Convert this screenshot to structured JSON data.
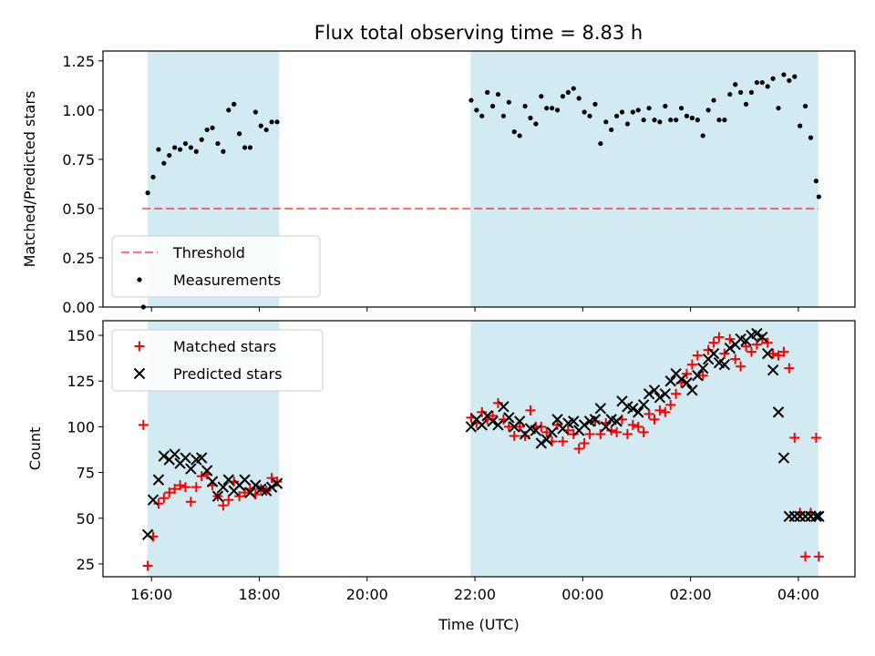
{
  "figure": {
    "title": "Flux total observing time = 8.83 h"
  },
  "colors": {
    "shade": "#add8e6",
    "threshold": "#ff0000",
    "measurements": "#000000",
    "matched": "#ff0000",
    "predicted": "#000000"
  },
  "chart_data": [
    {
      "type": "scatter",
      "title": "Flux total observing time = 8.83 h",
      "xlabel": "",
      "ylabel": "Matched/Predicted stars",
      "x_unit": "hours (UTC, continuous past midnight)",
      "xlim": [
        15.1,
        29.05
      ],
      "ylim": [
        0,
        1.3
      ],
      "yticks": [
        0.0,
        0.25,
        0.5,
        0.75,
        1.0,
        1.25
      ],
      "ytick_labels": [
        "0.00",
        "0.25",
        "0.50",
        "0.75",
        "1.00",
        "1.25"
      ],
      "shaded_regions": [
        [
          15.93,
          18.37
        ],
        [
          21.92,
          28.37
        ]
      ],
      "threshold": {
        "name": "Threshold",
        "y": 0.5,
        "x_range": [
          15.83,
          28.37
        ]
      },
      "legend": {
        "placement": "lower-left",
        "entries": [
          "Threshold",
          "Measurements"
        ]
      },
      "series": [
        {
          "name": "Measurements",
          "x": [
            15.85,
            15.93,
            16.03,
            16.13,
            16.23,
            16.33,
            16.43,
            16.53,
            16.63,
            16.73,
            16.83,
            16.93,
            17.03,
            17.13,
            17.23,
            17.33,
            17.43,
            17.53,
            17.63,
            17.73,
            17.83,
            17.93,
            18.03,
            18.13,
            18.23,
            18.33,
            21.93,
            22.03,
            22.13,
            22.23,
            22.33,
            22.43,
            22.53,
            22.63,
            22.73,
            22.83,
            22.93,
            23.03,
            23.13,
            23.23,
            23.33,
            23.43,
            23.53,
            23.63,
            23.73,
            23.83,
            23.93,
            24.03,
            24.13,
            24.23,
            24.33,
            24.43,
            24.53,
            24.63,
            24.73,
            24.83,
            24.93,
            25.03,
            25.13,
            25.23,
            25.33,
            25.43,
            25.53,
            25.63,
            25.73,
            25.83,
            25.93,
            26.03,
            26.13,
            26.23,
            26.33,
            26.43,
            26.53,
            26.63,
            26.73,
            26.83,
            26.93,
            27.03,
            27.13,
            27.23,
            27.33,
            27.43,
            27.53,
            27.63,
            27.73,
            27.83,
            27.93,
            28.03,
            28.13,
            28.23,
            28.33,
            28.38
          ],
          "y": [
            0.0,
            0.58,
            0.66,
            0.8,
            0.73,
            0.77,
            0.81,
            0.8,
            0.83,
            0.81,
            0.79,
            0.85,
            0.9,
            0.91,
            0.83,
            0.79,
            1.0,
            1.03,
            0.88,
            0.81,
            0.81,
            0.99,
            0.92,
            0.9,
            0.94,
            0.94,
            1.05,
            1.0,
            0.97,
            1.09,
            1.02,
            1.08,
            0.97,
            1.04,
            0.89,
            0.87,
            1.02,
            0.96,
            0.93,
            1.07,
            1.01,
            1.01,
            1.0,
            1.07,
            1.09,
            1.11,
            1.06,
            0.99,
            0.97,
            1.03,
            0.83,
            0.94,
            0.9,
            0.97,
            0.99,
            0.93,
            0.99,
            1.0,
            0.95,
            1.01,
            0.95,
            0.94,
            1.02,
            0.95,
            0.95,
            1.01,
            0.97,
            0.96,
            0.95,
            0.87,
            1.0,
            1.05,
            0.95,
            0.95,
            1.08,
            1.13,
            1.09,
            1.03,
            1.09,
            1.14,
            1.14,
            1.12,
            1.16,
            1.01,
            1.18,
            1.15,
            1.17,
            0.92,
            1.02,
            0.86,
            0.64,
            0.56
          ]
        }
      ]
    },
    {
      "type": "scatter",
      "xlabel": "Time (UTC)",
      "ylabel": "Count",
      "x_unit": "hours (UTC, continuous past midnight)",
      "xlim": [
        15.1,
        29.05
      ],
      "ylim": [
        18,
        158
      ],
      "yticks": [
        25,
        50,
        75,
        100,
        125,
        150
      ],
      "ytick_labels": [
        "25",
        "50",
        "75",
        "100",
        "125",
        "150"
      ],
      "xticks": [
        16,
        18,
        20,
        22,
        24,
        26,
        28
      ],
      "xtick_labels": [
        "16:00",
        "18:00",
        "20:00",
        "22:00",
        "00:00",
        "02:00",
        "04:00"
      ],
      "shaded_regions": [
        [
          15.93,
          18.37
        ],
        [
          21.92,
          28.37
        ]
      ],
      "legend": {
        "placement": "upper-left",
        "entries": [
          "Matched stars",
          "Predicted stars"
        ]
      },
      "series": [
        {
          "name": "Matched stars",
          "marker": "plus",
          "x": [
            15.85,
            15.93,
            16.03,
            16.13,
            16.23,
            16.33,
            16.43,
            16.53,
            16.63,
            16.73,
            16.83,
            16.93,
            17.03,
            17.13,
            17.23,
            17.33,
            17.43,
            17.53,
            17.63,
            17.73,
            17.83,
            17.93,
            18.03,
            18.13,
            18.23,
            18.33,
            21.93,
            22.03,
            22.13,
            22.23,
            22.33,
            22.43,
            22.53,
            22.63,
            22.73,
            22.83,
            22.93,
            23.03,
            23.13,
            23.23,
            23.33,
            23.43,
            23.53,
            23.63,
            23.73,
            23.83,
            23.93,
            24.03,
            24.13,
            24.23,
            24.33,
            24.43,
            24.53,
            24.63,
            24.73,
            24.83,
            24.93,
            25.03,
            25.13,
            25.23,
            25.33,
            25.43,
            25.53,
            25.63,
            25.73,
            25.83,
            25.93,
            26.03,
            26.13,
            26.23,
            26.33,
            26.43,
            26.53,
            26.63,
            26.73,
            26.83,
            26.93,
            27.03,
            27.13,
            27.23,
            27.33,
            27.43,
            27.53,
            27.63,
            27.73,
            27.83,
            27.93,
            28.03,
            28.13,
            28.23,
            28.33,
            28.38
          ],
          "y": [
            101,
            24,
            40,
            58,
            61,
            64,
            66,
            68,
            67,
            59,
            67,
            73,
            74,
            68,
            62,
            57,
            60,
            70,
            62,
            64,
            66,
            63,
            66,
            65,
            72,
            70,
            105,
            102,
            108,
            104,
            106,
            113,
            104,
            100,
            95,
            100,
            95,
            109,
            100,
            100,
            97,
            92,
            101,
            92,
            98,
            96,
            88,
            91,
            96,
            103,
            96,
            102,
            98,
            97,
            104,
            96,
            101,
            100,
            97,
            107,
            104,
            109,
            108,
            112,
            118,
            124,
            129,
            134,
            139,
            128,
            142,
            146,
            149,
            140,
            148,
            137,
            133,
            144,
            141,
            145,
            148,
            146,
            140,
            139,
            141,
            132,
            94,
            53,
            29,
            53,
            94,
            29
          ]
        },
        {
          "name": "Predicted stars",
          "marker": "x",
          "x": [
            15.93,
            16.03,
            16.13,
            16.23,
            16.33,
            16.43,
            16.53,
            16.63,
            16.73,
            16.83,
            16.93,
            17.03,
            17.13,
            17.23,
            17.33,
            17.43,
            17.53,
            17.63,
            17.73,
            17.83,
            17.93,
            18.03,
            18.13,
            18.23,
            18.33,
            21.93,
            22.03,
            22.13,
            22.23,
            22.33,
            22.43,
            22.53,
            22.63,
            22.73,
            22.83,
            22.93,
            23.03,
            23.13,
            23.23,
            23.33,
            23.43,
            23.53,
            23.63,
            23.73,
            23.83,
            23.93,
            24.03,
            24.13,
            24.23,
            24.33,
            24.43,
            24.53,
            24.63,
            24.73,
            24.83,
            24.93,
            25.03,
            25.13,
            25.23,
            25.33,
            25.43,
            25.53,
            25.63,
            25.73,
            25.83,
            25.93,
            26.03,
            26.13,
            26.23,
            26.33,
            26.43,
            26.53,
            26.63,
            26.73,
            26.83,
            26.93,
            27.03,
            27.13,
            27.23,
            27.33,
            27.43,
            27.53,
            27.63,
            27.73,
            27.83,
            27.93,
            28.03,
            28.13,
            28.23,
            28.33,
            28.38
          ],
          "y": [
            41,
            60,
            71,
            84,
            82,
            85,
            80,
            83,
            77,
            82,
            83,
            76,
            70,
            62,
            67,
            71,
            65,
            68,
            71,
            64,
            68,
            66,
            65,
            67,
            69,
            100,
            104,
            101,
            106,
            103,
            101,
            111,
            105,
            100,
            103,
            96,
            99,
            98,
            91,
            93,
            97,
            104,
            99,
            102,
            103,
            98,
            101,
            103,
            104,
            110,
            100,
            104,
            103,
            114,
            111,
            110,
            108,
            112,
            118,
            120,
            116,
            118,
            125,
            129,
            126,
            124,
            120,
            128,
            132,
            137,
            140,
            135,
            134,
            143,
            145,
            148,
            147,
            150,
            151,
            149,
            140,
            131,
            108,
            83,
            51,
            51,
            51,
            51,
            51,
            51,
            51
          ]
        }
      ]
    }
  ]
}
